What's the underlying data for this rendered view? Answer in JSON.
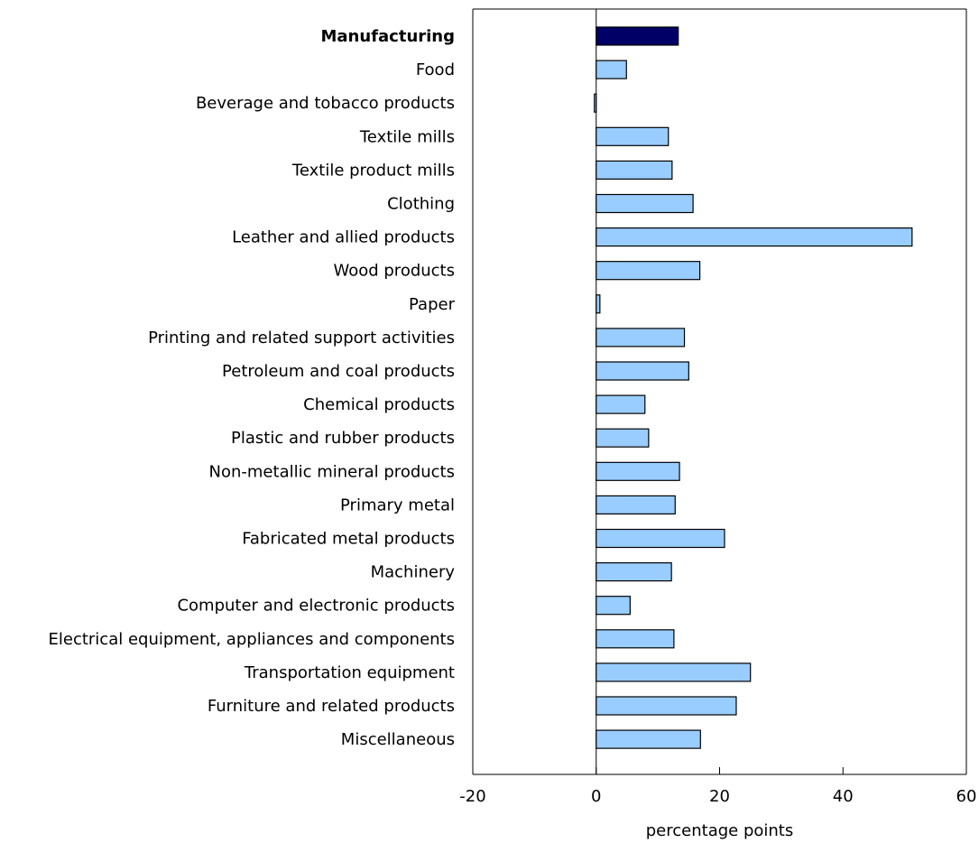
{
  "chart_data": {
    "type": "bar",
    "orientation": "horizontal",
    "title": "",
    "xlabel": "percentage points",
    "ylabel": "",
    "xlim": [
      -20,
      60
    ],
    "xticks": [
      -20,
      0,
      20,
      40,
      60
    ],
    "grid": false,
    "highlight_category": "Manufacturing",
    "colors": {
      "highlight": "#000066",
      "bar": "#99ccff",
      "stroke": "#000000"
    },
    "categories": [
      "Manufacturing",
      "Food",
      "Beverage and tobacco products",
      "Textile mills",
      "Textile product mills",
      "Clothing",
      "Leather and allied products",
      "Wood products",
      "Paper",
      "Printing and related support activities",
      "Petroleum and coal products",
      "Chemical products",
      "Plastic and rubber products",
      "Non-metallic mineral products",
      "Primary metal",
      "Fabricated metal products",
      "Machinery",
      "Computer and electronic products",
      "Electrical equipment, appliances and components",
      "Transportation equipment",
      "Furniture and related products",
      "Miscellaneous"
    ],
    "values": [
      13.3,
      4.9,
      -0.3,
      11.7,
      12.3,
      15.7,
      51.2,
      16.8,
      0.6,
      14.3,
      15.0,
      7.9,
      8.5,
      13.5,
      12.8,
      20.8,
      12.2,
      5.5,
      12.6,
      25.0,
      22.7,
      16.9
    ]
  }
}
